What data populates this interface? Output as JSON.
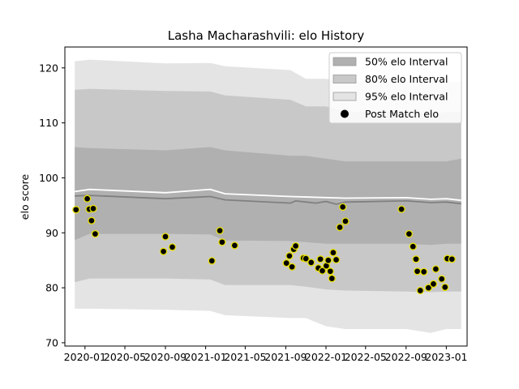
{
  "chart_data": {
    "type": "area",
    "title": "Lasha Macharashvili: elo History",
    "xlabel": "",
    "ylabel": "elo score",
    "xlim": [
      "2019-11-01",
      "2023-03-05"
    ],
    "ylim": [
      69.4,
      123.8
    ],
    "grid": false,
    "legend_position": "top-right",
    "x_ticks": [
      {
        "date": "2020-01-01",
        "label": "2020-01"
      },
      {
        "date": "2020-05-01",
        "label": "2020-05"
      },
      {
        "date": "2020-09-01",
        "label": "2020-09"
      },
      {
        "date": "2021-01-01",
        "label": "2021-01"
      },
      {
        "date": "2021-05-01",
        "label": "2021-05"
      },
      {
        "date": "2021-09-01",
        "label": "2021-09"
      },
      {
        "date": "2022-01-01",
        "label": "2022-01"
      },
      {
        "date": "2022-05-01",
        "label": "2022-05"
      },
      {
        "date": "2022-09-01",
        "label": "2022-09"
      },
      {
        "date": "2023-01-01",
        "label": "2023-01"
      }
    ],
    "y_ticks": [
      70,
      80,
      90,
      100,
      110,
      120
    ],
    "legend": [
      {
        "label": "50% elo Interval",
        "color": "#b0b0b0",
        "kind": "band"
      },
      {
        "label": "80% elo Interval",
        "color": "#c8c8c8",
        "kind": "band"
      },
      {
        "label": "95% elo Interval",
        "color": "#e4e4e4",
        "kind": "band"
      },
      {
        "label": "Post Match elo",
        "color": "#000000",
        "kind": "point"
      }
    ],
    "band_x": [
      "2019-12-01",
      "2020-01-15",
      "2020-09-01",
      "2021-01-15",
      "2021-03-01",
      "2021-09-15",
      "2021-11-01",
      "2022-01-01",
      "2022-03-01",
      "2022-09-01",
      "2022-11-15",
      "2023-01-01",
      "2023-02-15"
    ],
    "bands": [
      {
        "name": "95% elo Interval",
        "color": "#e4e4e4",
        "upper": [
          121.2,
          121.5,
          120.8,
          120.9,
          120.3,
          119.6,
          118.0,
          118.0,
          117.5,
          117.5,
          117.5,
          117.5,
          117.5
        ],
        "lower": [
          76.2,
          76.2,
          76.0,
          75.8,
          75.0,
          74.5,
          74.5,
          73.0,
          72.5,
          72.5,
          71.8,
          72.5,
          72.5
        ]
      },
      {
        "name": "80% elo Interval",
        "color": "#c8c8c8",
        "upper": [
          116.0,
          116.2,
          115.8,
          115.7,
          115.0,
          114.2,
          113.0,
          113.0,
          112.0,
          112.0,
          111.5,
          112.0,
          112.0
        ],
        "lower": [
          81.0,
          81.7,
          81.7,
          81.5,
          80.5,
          80.5,
          80.2,
          79.7,
          79.5,
          79.3,
          79.2,
          79.3,
          79.3
        ]
      },
      {
        "name": "50% elo Interval",
        "color": "#b0b0b0",
        "upper": [
          105.6,
          105.4,
          105.0,
          105.6,
          105.0,
          104.0,
          104.0,
          103.5,
          103.0,
          103.0,
          103.0,
          103.0,
          103.5
        ],
        "lower": [
          88.7,
          89.8,
          89.8,
          89.7,
          88.6,
          88.5,
          88.3,
          88.0,
          88.0,
          88.0,
          87.8,
          88.0,
          88.0
        ]
      }
    ],
    "mean_line": {
      "x": [
        "2019-12-01",
        "2020-01-15",
        "2020-09-01",
        "2021-01-15",
        "2021-03-01",
        "2021-09-15",
        "2021-10-01",
        "2021-12-01",
        "2022-01-01",
        "2022-02-01",
        "2022-03-01",
        "2022-09-01",
        "2022-11-15",
        "2023-01-01",
        "2023-02-15"
      ],
      "y": [
        96.7,
        96.8,
        96.2,
        96.6,
        96.0,
        95.4,
        95.8,
        95.4,
        95.7,
        95.2,
        95.6,
        95.8,
        95.5,
        95.6,
        95.3
      ]
    },
    "upper_line": {
      "x": [
        "2019-12-01",
        "2020-01-15",
        "2020-09-01",
        "2021-01-15",
        "2021-03-01",
        "2021-09-15",
        "2022-03-01",
        "2022-09-01",
        "2022-11-15",
        "2023-01-01",
        "2023-02-15"
      ],
      "y": [
        97.5,
        97.9,
        97.3,
        97.9,
        97.1,
        96.6,
        96.3,
        96.4,
        96.1,
        96.2,
        95.9
      ]
    },
    "points": {
      "name": "Post Match elo",
      "x": [
        "2019-12-05",
        "2020-01-08",
        "2020-01-14",
        "2020-01-21",
        "2020-01-26",
        "2020-02-01",
        "2020-08-26",
        "2020-09-01",
        "2020-09-22",
        "2021-01-20",
        "2021-02-13",
        "2021-02-20",
        "2021-03-30",
        "2021-09-03",
        "2021-09-12",
        "2021-09-20",
        "2021-09-25",
        "2021-10-01",
        "2021-10-25",
        "2021-11-01",
        "2021-11-17",
        "2021-12-09",
        "2021-12-15",
        "2021-12-21",
        "2022-01-02",
        "2022-01-08",
        "2022-01-14",
        "2022-01-19",
        "2022-01-23",
        "2022-02-01",
        "2022-02-12",
        "2022-02-21",
        "2022-03-01",
        "2022-08-18",
        "2022-09-10",
        "2022-09-22",
        "2022-10-01",
        "2022-10-05",
        "2022-10-14",
        "2022-10-25",
        "2022-11-08",
        "2022-11-23",
        "2022-11-30",
        "2022-12-18",
        "2022-12-28",
        "2023-01-04",
        "2023-01-18"
      ],
      "y": [
        94.2,
        96.2,
        94.3,
        92.2,
        94.4,
        89.8,
        86.6,
        89.3,
        87.4,
        84.9,
        90.4,
        88.3,
        87.7,
        84.5,
        85.8,
        83.8,
        87.0,
        87.6,
        85.4,
        85.3,
        84.6,
        83.6,
        85.2,
        83.1,
        84.0,
        85.0,
        83.0,
        81.7,
        86.4,
        85.1,
        91.0,
        94.7,
        92.1,
        94.3,
        89.8,
        87.5,
        85.2,
        83.0,
        79.5,
        82.9,
        80.0,
        80.7,
        83.4,
        81.6,
        80.1,
        85.3,
        85.2
      ]
    }
  }
}
